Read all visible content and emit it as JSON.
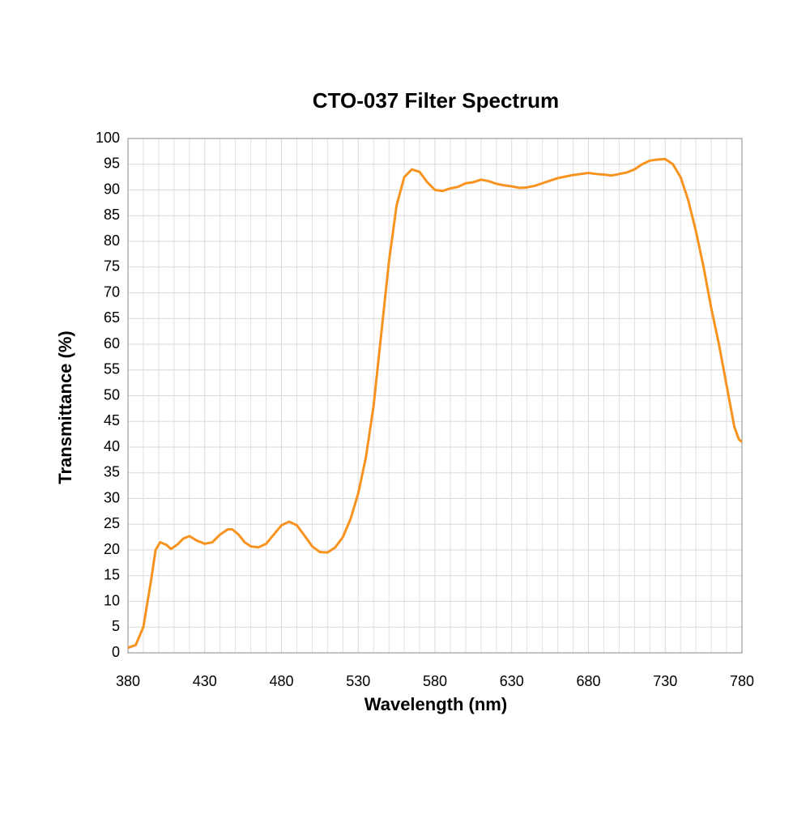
{
  "chart_data": {
    "type": "line",
    "title": "CTO-037 Filter Spectrum",
    "xlabel": "Wavelength (nm)",
    "ylabel": "Transmittance (%)",
    "x": [
      380,
      385,
      390,
      395,
      398,
      401,
      405,
      408,
      412,
      416,
      420,
      425,
      430,
      435,
      440,
      445,
      448,
      452,
      456,
      460,
      465,
      470,
      475,
      480,
      485,
      490,
      495,
      500,
      505,
      510,
      515,
      520,
      525,
      530,
      535,
      540,
      545,
      550,
      555,
      560,
      565,
      570,
      575,
      580,
      585,
      590,
      595,
      600,
      605,
      610,
      615,
      620,
      625,
      630,
      635,
      640,
      645,
      650,
      655,
      660,
      665,
      670,
      675,
      680,
      685,
      690,
      695,
      700,
      705,
      710,
      715,
      720,
      725,
      730,
      735,
      740,
      745,
      750,
      755,
      760,
      765,
      770,
      775,
      778,
      780
    ],
    "series": [
      {
        "name": "CTO-037",
        "color": "#f7931e",
        "values": [
          1,
          1.5,
          5,
          14,
          20,
          21.5,
          21,
          20.2,
          21,
          22.2,
          22.7,
          21.8,
          21.2,
          21.5,
          23,
          24,
          24,
          23,
          21.5,
          20.7,
          20.5,
          21.2,
          23,
          24.8,
          25.5,
          24.8,
          22.8,
          20.7,
          19.6,
          19.5,
          20.5,
          22.5,
          26,
          31,
          38,
          48,
          62,
          76,
          87,
          92.5,
          94,
          93.5,
          91.5,
          90,
          89.8,
          90.3,
          90.6,
          91.3,
          91.5,
          92,
          91.7,
          91.2,
          90.9,
          90.7,
          90.4,
          90.5,
          90.8,
          91.3,
          91.8,
          92.3,
          92.6,
          92.9,
          93.1,
          93.3,
          93.1,
          93,
          92.8,
          93.1,
          93.4,
          94,
          95,
          95.7,
          95.9,
          96,
          95,
          92.5,
          88,
          82,
          75,
          67,
          60,
          52,
          44,
          41.5,
          41
        ]
      }
    ],
    "xlim": [
      380,
      780
    ],
    "xticks": [
      380,
      430,
      480,
      530,
      580,
      630,
      680,
      730,
      780
    ],
    "xminor_ticks": [
      390,
      400,
      410,
      420,
      440,
      450,
      460,
      470,
      490,
      500,
      510,
      520,
      540,
      550,
      560,
      570,
      590,
      600,
      610,
      620,
      640,
      650,
      660,
      670,
      690,
      700,
      710,
      720,
      740,
      750,
      760,
      770
    ],
    "ylim": [
      0,
      100
    ],
    "yticks": [
      0,
      5,
      10,
      15,
      20,
      25,
      30,
      35,
      40,
      45,
      50,
      55,
      60,
      65,
      70,
      75,
      80,
      85,
      90,
      95,
      100
    ],
    "grid": true
  }
}
